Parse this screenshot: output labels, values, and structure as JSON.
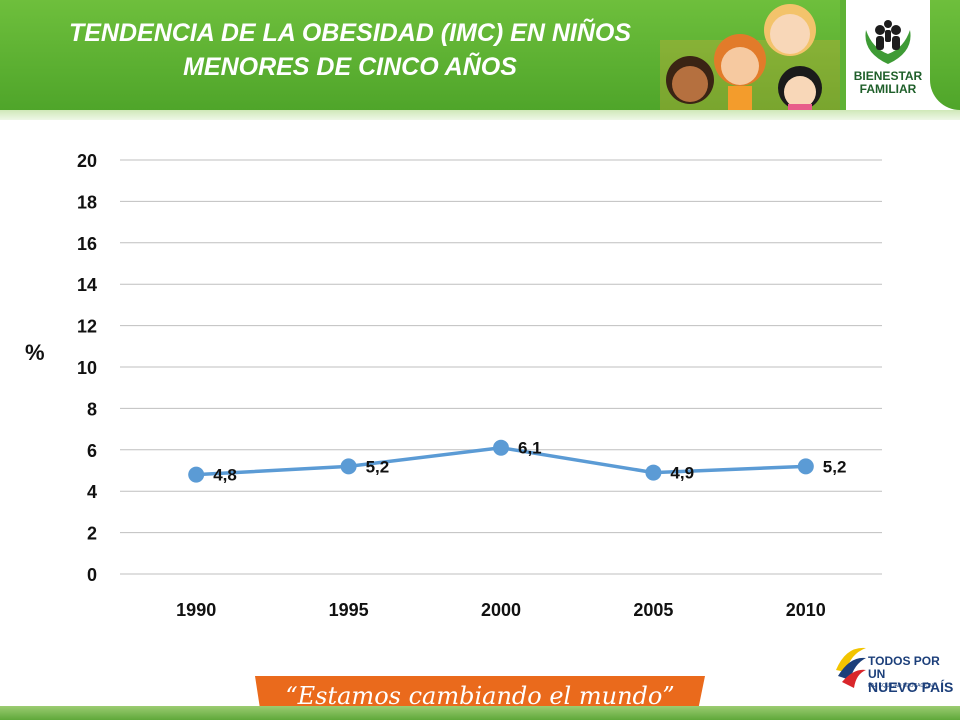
{
  "header": {
    "title_line1": "TENDENCIA DE LA OBESIDAD (IMC) EN NIÑOS",
    "title_line2": "MENORES DE CINCO AÑOS",
    "logo_line1": "BIENESTAR",
    "logo_line2": "FAMILIAR"
  },
  "chart_data": {
    "type": "line",
    "x": [
      "1990",
      "1995",
      "2000",
      "2005",
      "2010"
    ],
    "series": [
      {
        "values": [
          4.8,
          5.2,
          6.1,
          4.9,
          5.2
        ]
      }
    ],
    "data_labels": [
      "4,8",
      "5,2",
      "6,1",
      "4,9",
      "5,2"
    ],
    "ylabel": "%",
    "ylim": [
      0,
      20
    ],
    "yticks": [
      0,
      2,
      4,
      6,
      8,
      10,
      12,
      14,
      16,
      18,
      20
    ],
    "grid": true,
    "line_color": "#5b9bd5"
  },
  "footer": {
    "slogan": "“Estamos cambiando el mundo”",
    "logo_line1": "TODOS POR UN",
    "logo_line2": "NUEVO PAÍS",
    "logo_sub": "PAZ   EQUIDAD   EDUCACIÓN"
  },
  "colors": {
    "header_green": "#5fb235",
    "slogan_orange": "#ea6a1c"
  }
}
